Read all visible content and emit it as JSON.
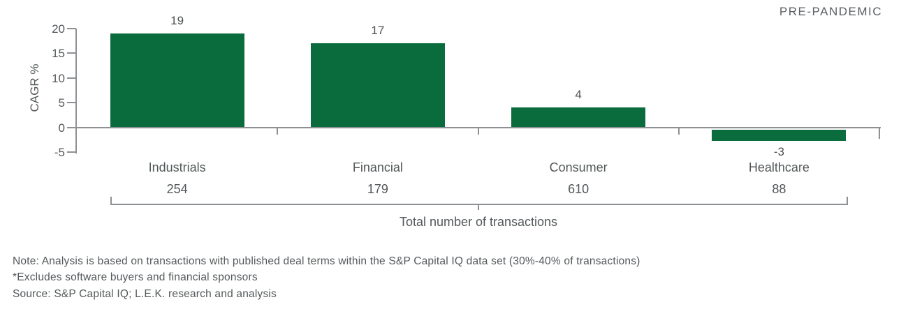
{
  "header": {
    "tag": "PRE-PANDEMIC"
  },
  "chart_data": {
    "type": "bar",
    "title": "",
    "ylabel": "CAGR %",
    "xlabel": "",
    "categories": [
      "Industrials",
      "Financial",
      "Consumer",
      "Healthcare"
    ],
    "values": [
      19,
      17,
      4,
      -3
    ],
    "counts": [
      "254",
      "179",
      "610",
      "88"
    ],
    "counts_label": "Total number of transactions",
    "yticks": [
      20,
      15,
      10,
      5,
      0,
      -5
    ],
    "ylim": [
      -5,
      20
    ],
    "grid": false,
    "legend": "none",
    "bar_color": "#0a6b3d"
  },
  "footnotes": [
    "Note: Analysis is based on transactions with published deal terms within the S&P Capital IQ data set (30%-40% of transactions)",
    "*Excludes software buyers and financial sponsors",
    "Source: S&P Capital IQ; L.E.K. research and analysis"
  ],
  "colors": {
    "bar": "#0a6b3d",
    "text": "#54585a",
    "axis": "#8e9193",
    "tag_text": "#5a5f63"
  }
}
